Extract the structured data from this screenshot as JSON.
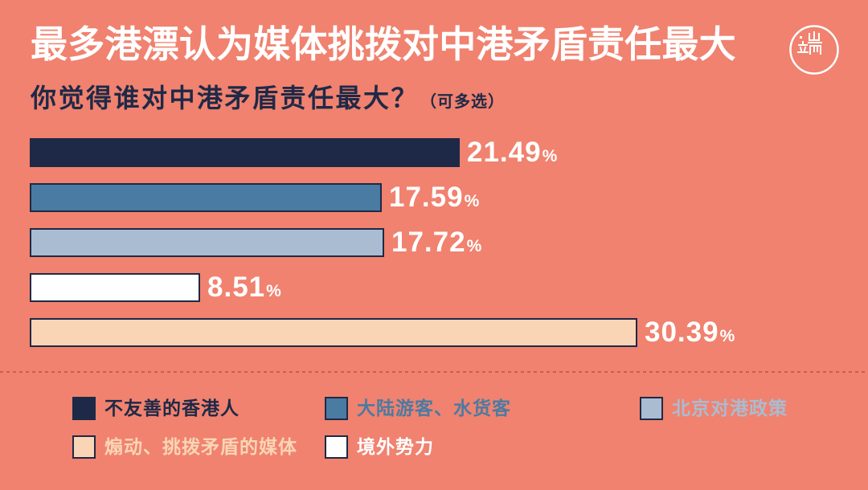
{
  "header": {
    "title": "最多港漂认为媒体挑拨对中港矛盾责任最大",
    "logo_icon": "initium-logo-icon"
  },
  "colors": {
    "background": "#F0826F",
    "text_dark": "#1E2947",
    "bar_border": "#1E2947",
    "divider": "#CC5D4B",
    "value_label": "#FFFFFF"
  },
  "chart_data": {
    "type": "bar",
    "orientation": "horizontal",
    "title": "你觉得谁对中港矛盾责任最大？",
    "subtitle": "（可多选）",
    "unit": "%",
    "categories": [
      "不友善的香港人",
      "大陆游客、水货客",
      "北京对港政策",
      "境外势力",
      "煽动、挑拨矛盾的媒体"
    ],
    "values": [
      21.49,
      17.59,
      17.72,
      8.51,
      30.39
    ],
    "colors": [
      "#1E2947",
      "#4A7BA2",
      "#AABCD1",
      "#FFFFFF",
      "#FAD5B5"
    ],
    "data_labels": true,
    "grid": false,
    "axes_visible": false,
    "legend": {
      "placement": "bottom"
    }
  }
}
